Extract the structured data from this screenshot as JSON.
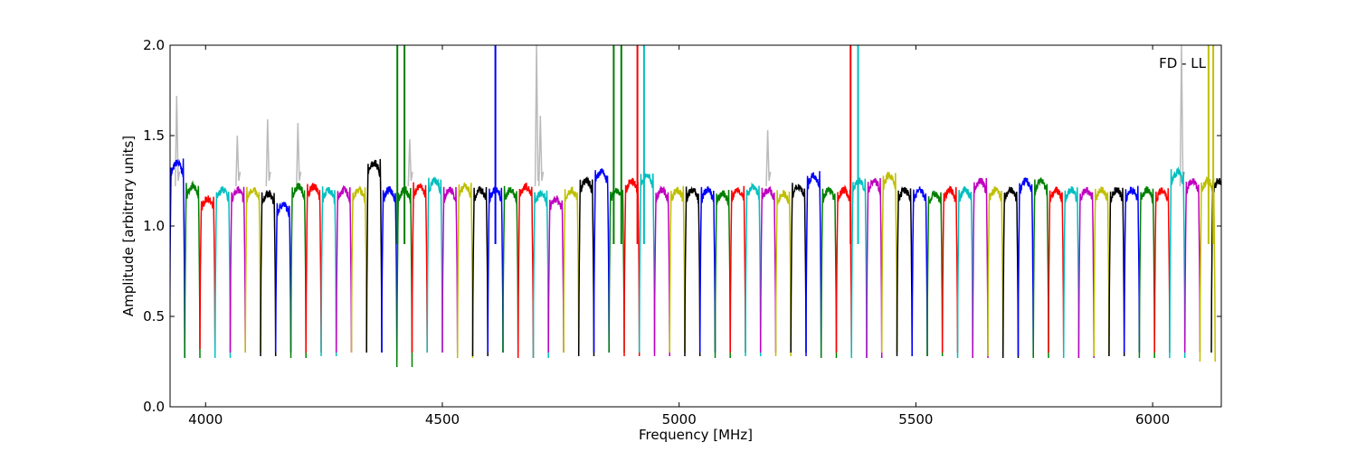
{
  "chart_data": {
    "type": "line",
    "title": "",
    "xlabel": "Frequency [MHz]",
    "ylabel": "Amplitude [arbitrary units]",
    "xlim": [
      3925,
      6145
    ],
    "ylim": [
      0.0,
      2.0
    ],
    "xticks": [
      4000,
      4500,
      5000,
      5500,
      6000
    ],
    "yticks": [
      0.0,
      0.5,
      1.0,
      1.5,
      2.0
    ],
    "xtick_labels": [
      "4000",
      "4500",
      "5000",
      "5500",
      "6000"
    ],
    "ytick_labels": [
      "0.0",
      "0.5",
      "1.0",
      "1.5",
      "2.0"
    ],
    "grid": false,
    "annotation": "FD - LL",
    "raw_color": "#bbbbbb",
    "channel_colors": [
      "#0000ff",
      "#008000",
      "#ff0000",
      "#00bfbf",
      "#bf00bf",
      "#bfbf00",
      "#000000"
    ],
    "channel_width_mhz": 32,
    "channel_centers": [
      3940,
      3972,
      4004,
      4036,
      4068,
      4100,
      4132,
      4164,
      4196,
      4228,
      4260,
      4292,
      4324,
      4356,
      4388,
      4420,
      4452,
      4484,
      4516,
      4548,
      4580,
      4612,
      4644,
      4676,
      4708,
      4740,
      4772,
      4804,
      4836,
      4868,
      4900,
      4932,
      4964,
      4996,
      5028,
      5060,
      5092,
      5124,
      5156,
      5188,
      5220,
      5252,
      5284,
      5316,
      5348,
      5380,
      5412,
      5444,
      5476,
      5508,
      5540,
      5572,
      5604,
      5636,
      5668,
      5700,
      5732,
      5764,
      5796,
      5828,
      5860,
      5892,
      5924,
      5956,
      5988,
      6020,
      6052,
      6084,
      6116,
      6140
    ],
    "channel_plateau": [
      1.35,
      1.22,
      1.15,
      1.2,
      1.2,
      1.2,
      1.18,
      1.12,
      1.22,
      1.22,
      1.2,
      1.2,
      1.2,
      1.35,
      1.2,
      1.2,
      1.22,
      1.25,
      1.2,
      1.22,
      1.2,
      1.2,
      1.2,
      1.22,
      1.18,
      1.15,
      1.2,
      1.25,
      1.3,
      1.2,
      1.25,
      1.28,
      1.2,
      1.2,
      1.2,
      1.2,
      1.18,
      1.2,
      1.22,
      1.2,
      1.18,
      1.22,
      1.28,
      1.2,
      1.2,
      1.25,
      1.25,
      1.28,
      1.2,
      1.2,
      1.18,
      1.2,
      1.2,
      1.25,
      1.2,
      1.2,
      1.25,
      1.25,
      1.2,
      1.2,
      1.2,
      1.2,
      1.2,
      1.2,
      1.2,
      1.2,
      1.3,
      1.25,
      1.25,
      1.25
    ],
    "channel_min": [
      0.27,
      0.27,
      0.32,
      0.27,
      0.3,
      0.3,
      0.28,
      0.3,
      0.27,
      0.3,
      0.28,
      0.3,
      0.3,
      0.3,
      0.3,
      0.22,
      0.3,
      0.3,
      0.3,
      0.27,
      0.28,
      0.3,
      0.3,
      0.27,
      0.27,
      0.3,
      0.3,
      0.28,
      0.3,
      0.3,
      0.28,
      0.3,
      0.28,
      0.3,
      0.28,
      0.3,
      0.27,
      0.3,
      0.28,
      0.3,
      0.28,
      0.3,
      0.28,
      0.27,
      0.3,
      0.27,
      0.27,
      0.3,
      0.28,
      0.28,
      0.28,
      0.3,
      0.27,
      0.27,
      0.28,
      0.27,
      0.28,
      0.27,
      0.3,
      0.27,
      0.27,
      0.28,
      0.28,
      0.3,
      0.27,
      0.3,
      0.27,
      0.3,
      0.25,
      0.3
    ],
    "spikes": [
      {
        "x": 4405,
        "y": 2.0
      },
      {
        "x": 4420,
        "y": 2.0
      },
      {
        "x": 4612,
        "y": 2.0
      },
      {
        "x": 4862,
        "y": 2.0
      },
      {
        "x": 4878,
        "y": 2.0
      },
      {
        "x": 4912,
        "y": 2.0
      },
      {
        "x": 4926,
        "y": 2.0
      },
      {
        "x": 5362,
        "y": 2.0
      },
      {
        "x": 5378,
        "y": 2.0
      },
      {
        "x": 6118,
        "y": 2.0
      },
      {
        "x": 6128,
        "y": 2.0
      }
    ],
    "raw_peaks": [
      {
        "x": 3940,
        "y": 1.72
      },
      {
        "x": 4068,
        "y": 1.5
      },
      {
        "x": 4132,
        "y": 1.59
      },
      {
        "x": 4196,
        "y": 1.57
      },
      {
        "x": 4432,
        "y": 1.48
      },
      {
        "x": 4700,
        "y": 2.0
      },
      {
        "x": 4708,
        "y": 1.61
      },
      {
        "x": 5188,
        "y": 1.53
      },
      {
        "x": 6062,
        "y": 2.0
      }
    ]
  }
}
